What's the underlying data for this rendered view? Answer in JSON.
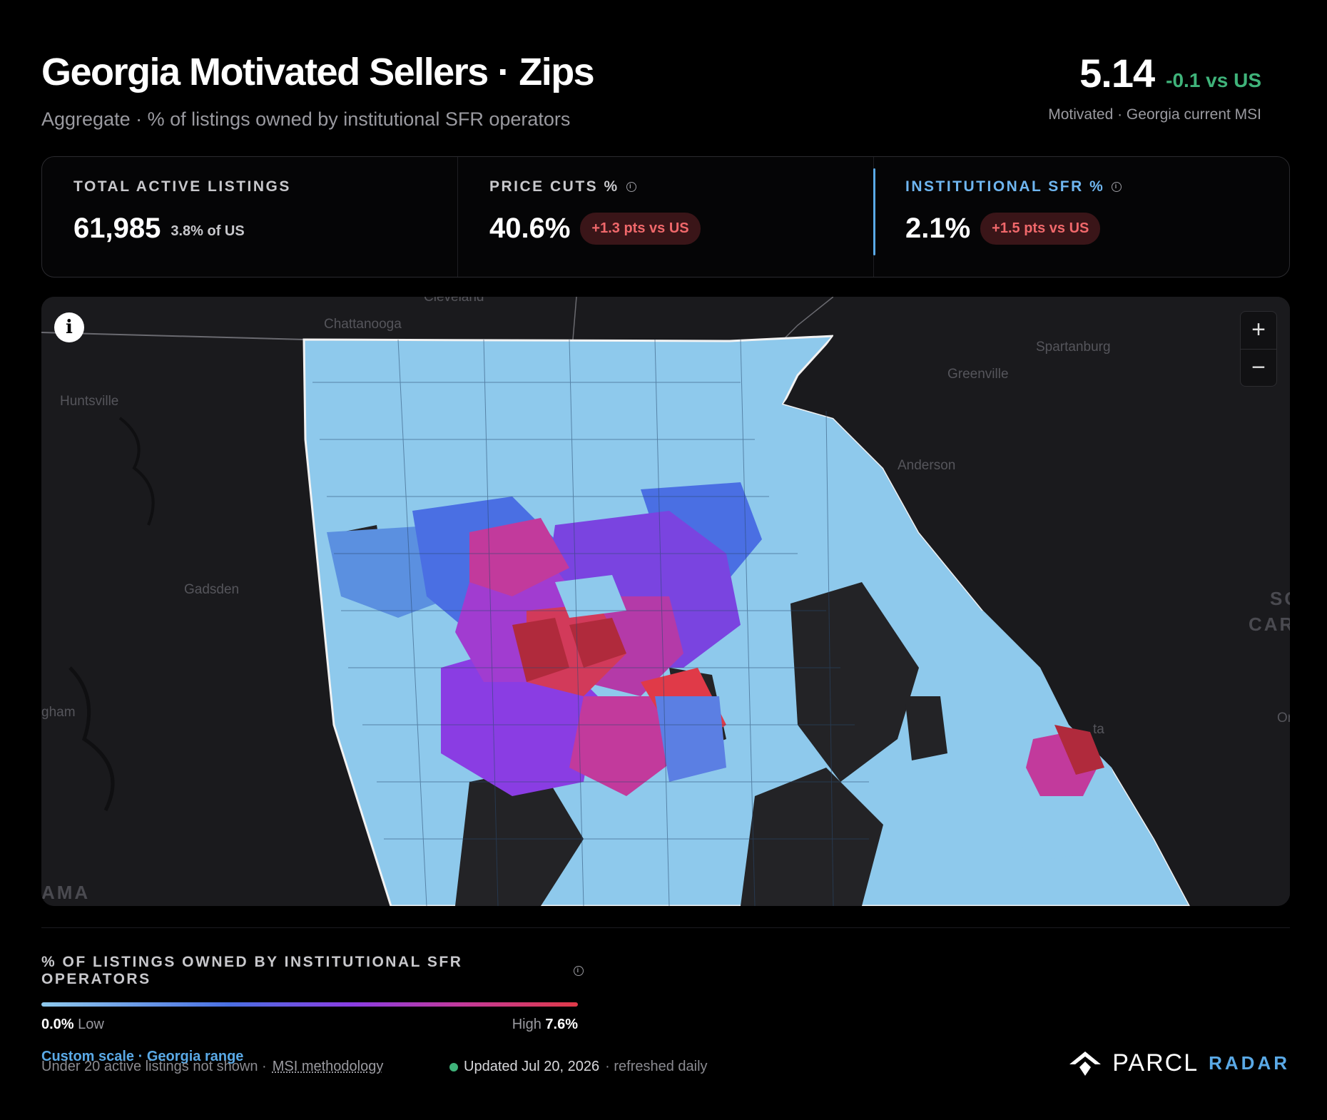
{
  "header": {
    "title": "Georgia Motivated Sellers · Zips",
    "subtitle": "Aggregate · % of listings owned by institutional SFR operators",
    "msi_value": "5.14",
    "msi_delta": "-0.1 vs US",
    "msi_caption": "Motivated · Georgia current MSI"
  },
  "stats": {
    "total": {
      "label": "TOTAL ACTIVE LISTINGS",
      "value": "61,985",
      "note": "3.8% of US"
    },
    "price_cuts": {
      "label": "PRICE CUTS %",
      "value": "40.6%",
      "badge": "+1.3 pts vs US"
    },
    "institutional": {
      "label": "INSTITUTIONAL SFR %",
      "value": "2.1%",
      "badge": "+1.5 pts vs US"
    }
  },
  "map": {
    "places": {
      "cleveland": "Cleveland",
      "chattanooga": "Chattanooga",
      "huntsville": "Huntsville",
      "gadsden": "Gadsden",
      "birmingham": "gham",
      "alabama": "AMA",
      "spartanburg": "Spartanburg",
      "greenville": "Greenville",
      "anderson": "Anderson",
      "south_carolina_1": "SC",
      "south_carolina_2": "CAR",
      "augusta": "ta",
      "orangeburg": "Or"
    },
    "zoom_in": "+",
    "zoom_out": "−",
    "info": "i"
  },
  "legend": {
    "title": "% OF LISTINGS OWNED BY INSTITUTIONAL SFR OPERATORS",
    "low_value": "0.0%",
    "low_label": "Low",
    "high_label": "High",
    "high_value": "7.6%",
    "scale_note": "Custom scale · Georgia range",
    "colors": [
      "#8ec9ec",
      "#4a6fe3",
      "#8a3de3",
      "#c23a9c",
      "#e03a48"
    ]
  },
  "footer": {
    "note": "Under 20 active listings not shown ·",
    "methodology": "MSI methodology",
    "updated": "Updated Jul 20, 2026",
    "refresh": "· refreshed daily"
  },
  "brand": {
    "name": "PARCL",
    "sub": "RADAR"
  }
}
